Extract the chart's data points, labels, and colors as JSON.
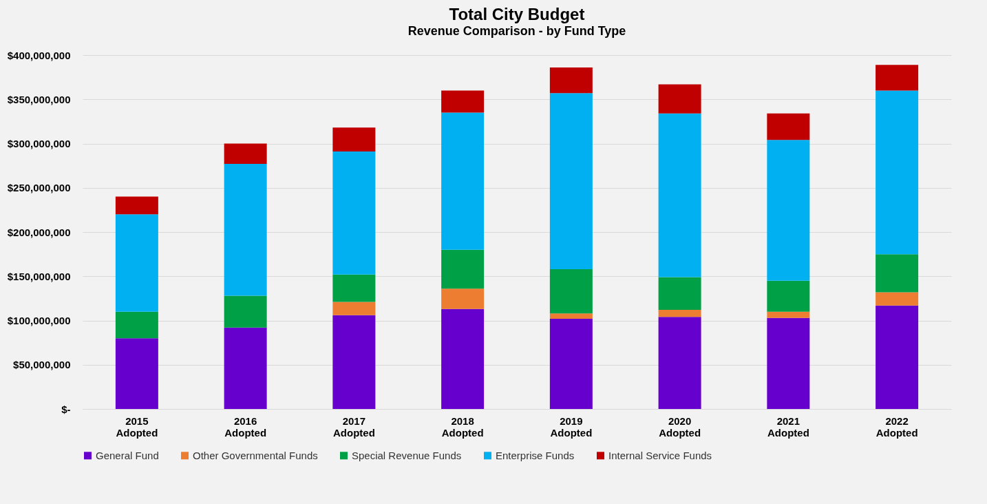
{
  "chart_data": {
    "type": "bar",
    "stacked": true,
    "title": "Total City Budget",
    "subtitle": "Revenue Comparison - by Fund Type",
    "categories": [
      "2015 Adopted",
      "2016 Adopted",
      "2017 Adopted",
      "2018 Adopted",
      "2019 Adopted",
      "2020 Adopted",
      "2021 Adopted",
      "2022 Adopted"
    ],
    "series": [
      {
        "name": "General Fund",
        "color": "#6600cc",
        "values": [
          80000000,
          92000000,
          106000000,
          113000000,
          102000000,
          104000000,
          103000000,
          117000000
        ]
      },
      {
        "name": "Other Governmental Funds",
        "color": "#ed7d31",
        "values": [
          0,
          0,
          15000000,
          23000000,
          6000000,
          8000000,
          7000000,
          15000000
        ]
      },
      {
        "name": "Special Revenue Funds",
        "color": "#00a046",
        "values": [
          30000000,
          36000000,
          31000000,
          44000000,
          50000000,
          37000000,
          35000000,
          43000000
        ]
      },
      {
        "name": "Enterprise Funds",
        "color": "#00b0f0",
        "values": [
          110000000,
          149000000,
          139000000,
          155000000,
          199000000,
          185000000,
          159000000,
          185000000
        ]
      },
      {
        "name": "Internal Service Funds",
        "color": "#c00000",
        "values": [
          20000000,
          23000000,
          27000000,
          25000000,
          29000000,
          33000000,
          30000000,
          29000000
        ]
      }
    ],
    "ylim": [
      0,
      400000000
    ],
    "yticks": [
      {
        "value": 0,
        "label": "$-"
      },
      {
        "value": 50000000,
        "label": "$50,000,000"
      },
      {
        "value": 100000000,
        "label": "$100,000,000"
      },
      {
        "value": 150000000,
        "label": "$150,000,000"
      },
      {
        "value": 200000000,
        "label": "$200,000,000"
      },
      {
        "value": 250000000,
        "label": "$250,000,000"
      },
      {
        "value": 300000000,
        "label": "$300,000,000"
      },
      {
        "value": 350000000,
        "label": "$350,000,000"
      },
      {
        "value": 400000000,
        "label": "$400,000,000"
      }
    ],
    "grid": "y",
    "legend": "bottom"
  }
}
